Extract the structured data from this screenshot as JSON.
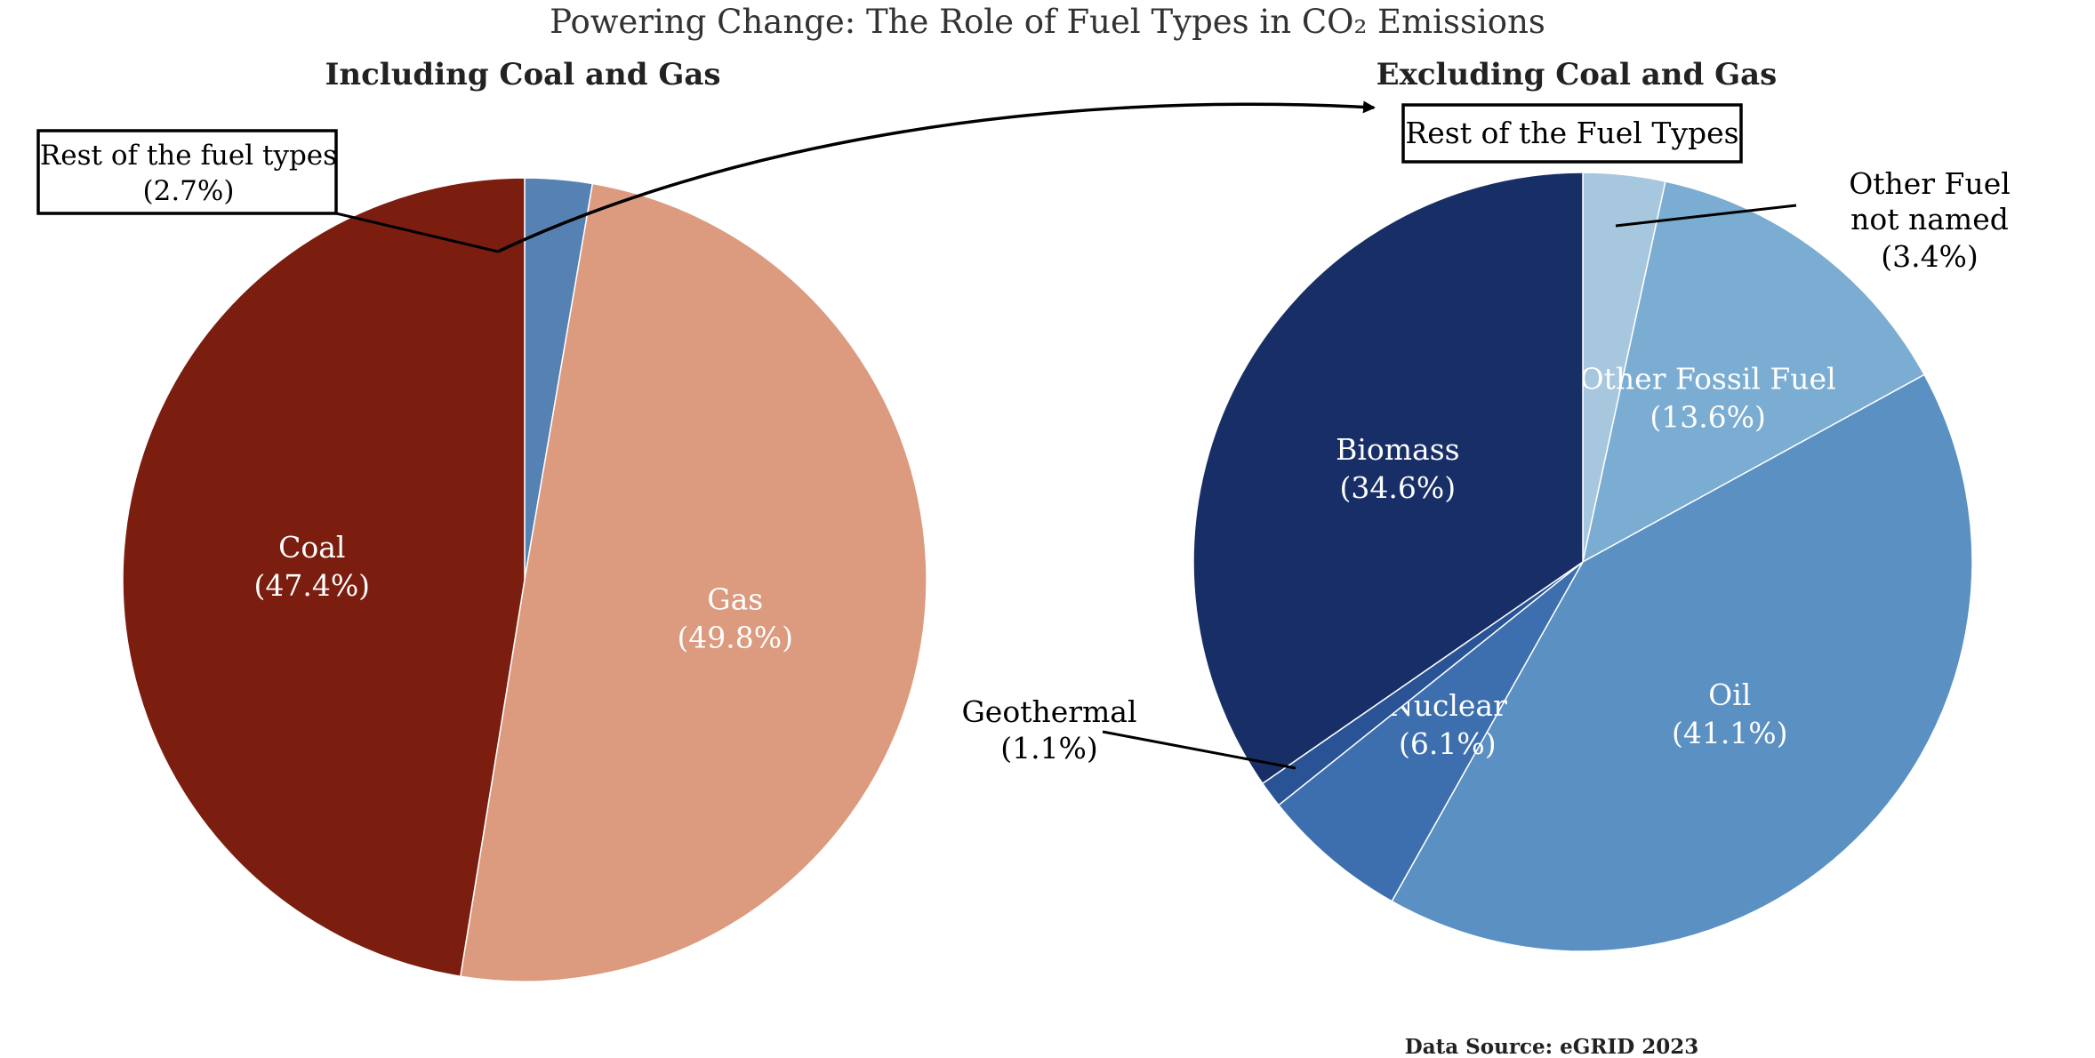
{
  "title": "Powering Change: The Role of Fuel Types in CO₂ Emissions",
  "source": "Data Source: eGRID 2023",
  "chart_data": [
    {
      "type": "pie",
      "title": "Including Coal and Gas",
      "slices": [
        {
          "label": "Rest of the fuel types",
          "value": 2.7,
          "pct": "(2.7%)",
          "color": "#5581b3",
          "outside_label": true
        },
        {
          "label": "Gas",
          "value": 49.8,
          "pct": "(49.8%)",
          "color": "#dc9a7f",
          "outside_label": false
        },
        {
          "label": "Coal",
          "value": 47.4,
          "pct": "(47.4%)",
          "color": "#7b1e10",
          "outside_label": false
        }
      ]
    },
    {
      "type": "pie",
      "title": "Excluding Coal and Gas",
      "subtitle_box": "Rest of the Fuel Types",
      "slices": [
        {
          "label": "Other Fuel\nnot named",
          "value": 3.4,
          "pct": "(3.4%)",
          "color": "#a7c7de",
          "outside_label": true
        },
        {
          "label": "Other Fossil Fuel",
          "value": 13.6,
          "pct": "(13.6%)",
          "color": "#7badd2",
          "outside_label": false
        },
        {
          "label": "Oil",
          "value": 41.1,
          "pct": "(41.1%)",
          "color": "#5a90c2",
          "outside_label": false
        },
        {
          "label": "Nuclear",
          "value": 6.1,
          "pct": "(6.1%)",
          "color": "#3d6fae",
          "outside_label": false
        },
        {
          "label": "Geothermal",
          "value": 1.1,
          "pct": "(1.1%)",
          "color": "#2a5396",
          "outside_label": true
        },
        {
          "label": "Biomass",
          "value": 34.6,
          "pct": "(34.6%)",
          "color": "#172f66",
          "outside_label": false
        }
      ]
    }
  ]
}
